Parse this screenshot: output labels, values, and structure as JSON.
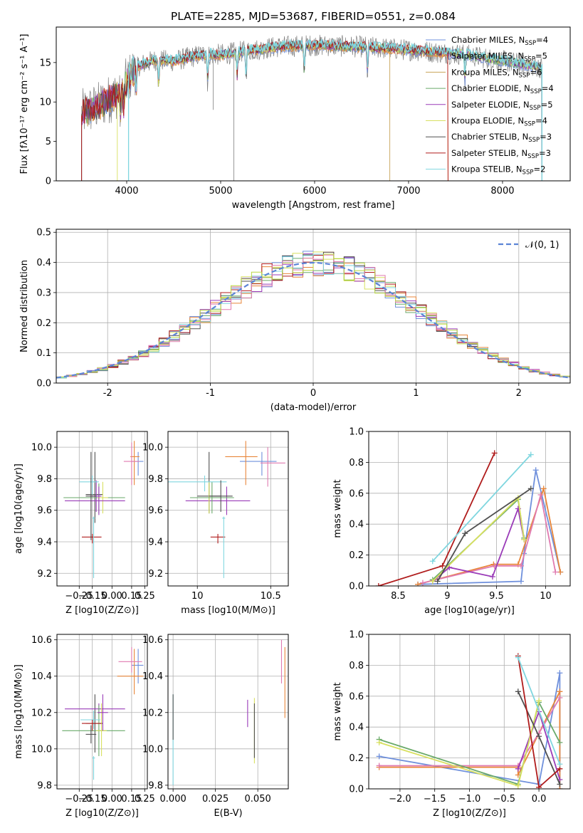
{
  "title": "PLATE=2285, MJD=53687, FIBERID=0551, z=0.084",
  "colors": {
    "Chabrier MILES": "#6f90dc",
    "Salpeter MILES": "#e8863a",
    "Kroupa MILES": "#c8a45a",
    "Chabrier ELODIE": "#6aaa6a",
    "Salpeter ELODIE": "#9a3bb8",
    "Kroupa ELODIE": "#d8e060",
    "Chabrier STELIB": "#505050",
    "Salpeter STELIB": "#b01c1c",
    "Kroupa STELIB": "#7fd6df",
    "pink": "#e07ab0",
    "lime": "#b8d840",
    "data": "#808080"
  },
  "chart_data": [
    {
      "id": "spectrum",
      "type": "line",
      "title": "PLATE=2285, MJD=53687, FIBERID=0551, z=0.084",
      "xlabel": "wavelength [Angstrom, rest frame]",
      "ylabel": "Flux [fλ10⁻¹⁷ erg cm⁻² s⁻¹ A⁻¹]",
      "xlim": [
        3250,
        8720
      ],
      "ylim": [
        0,
        19.5
      ],
      "xticks": [
        4000,
        5000,
        6000,
        7000,
        8000
      ],
      "yticks": [
        0,
        5,
        10,
        15
      ],
      "legend_position": "right",
      "series": [
        {
          "name": "Chabrier MILES, N_SSP=4",
          "color": "#6f90dc"
        },
        {
          "name": "Salpeter MILES, N_SSP=5",
          "color": "#e8863a"
        },
        {
          "name": "Kroupa MILES, N_SSP=6",
          "color": "#c8a45a"
        },
        {
          "name": "Chabrier ELODIE, N_SSP=4",
          "color": "#6aaa6a"
        },
        {
          "name": "Salpeter ELODIE, N_SSP=5",
          "color": "#9a3bb8"
        },
        {
          "name": "Kroupa ELODIE, N_SSP=4",
          "color": "#d8e060"
        },
        {
          "name": "Chabrier STELIB, N_SSP=3",
          "color": "#505050"
        },
        {
          "name": "Salpeter STELIB, N_SSP=3",
          "color": "#b01c1c"
        },
        {
          "name": "Kroupa STELIB, N_SSP=2",
          "color": "#7fd6df"
        }
      ],
      "continuum": {
        "x": [
          3520,
          3700,
          3900,
          4000,
          4100,
          4300,
          4500,
          4800,
          5000,
          5300,
          5600,
          6000,
          6500,
          7000,
          7300,
          7600,
          8000,
          8400
        ],
        "y": [
          8.5,
          9.5,
          11,
          12.5,
          14.5,
          15.3,
          15.2,
          16,
          16,
          16.5,
          17,
          17.2,
          17,
          16.6,
          16.3,
          16,
          15.2,
          14.4
        ]
      }
    },
    {
      "id": "residuals",
      "type": "step",
      "xlabel": "(data-model)/error",
      "ylabel": "Normed distribution",
      "xlim": [
        -2.5,
        2.5
      ],
      "ylim": [
        0,
        0.51
      ],
      "xticks": [
        -2,
        -1,
        0,
        1,
        2
      ],
      "yticks": [
        0.0,
        0.1,
        0.2,
        0.3,
        0.4,
        0.5
      ],
      "legend": "𝒩(0, 1)",
      "legend_position": "top-right"
    },
    {
      "id": "Z-age",
      "type": "errorbar",
      "xlabel": "Z [log10(Z/Z⊙)]",
      "ylabel": "age  [log10(age/yr)]",
      "xlim": [
        -0.42,
        0.27
      ],
      "ylim": [
        9.12,
        10.1
      ],
      "xticks": [
        -0.25,
        -0.15,
        0.0,
        0.15,
        0.25
      ],
      "xticklabels": [
        "−0.25",
        "−0.15",
        "0.00",
        "0.15",
        "0.25"
      ],
      "yticks": [
        9.2,
        9.4,
        9.6,
        9.8,
        10.0
      ]
    },
    {
      "id": "mass-age",
      "type": "errorbar",
      "xlabel": "mass [log10(M/M⊙)]",
      "xlim": [
        9.8,
        10.62
      ],
      "ylim": [
        9.12,
        10.1
      ],
      "xticks": [
        10.0,
        10.5
      ],
      "yticks": [
        9.2,
        9.4,
        9.6,
        9.8,
        10.0
      ]
    },
    {
      "id": "age-weight",
      "type": "line",
      "xlabel": "age  [log10(age/yr)]",
      "ylabel": "mass weight",
      "xlim": [
        8.2,
        10.25
      ],
      "ylim": [
        0,
        1
      ],
      "xticks": [
        8.5,
        9.0,
        9.5,
        10.0
      ],
      "yticks": [
        0.0,
        0.2,
        0.4,
        0.6,
        0.8,
        1.0
      ]
    },
    {
      "id": "Z-mass",
      "type": "errorbar",
      "xlabel": "Z [log10(Z/Z⊙)]",
      "ylabel": "mass [log10(M/M⊙)]",
      "xlim": [
        -0.42,
        0.27
      ],
      "ylim": [
        9.78,
        10.63
      ],
      "xticks": [
        -0.25,
        -0.15,
        0.0,
        0.15,
        0.25
      ],
      "xticklabels": [
        "−0.25",
        "−0.15",
        "0.00",
        "0.15",
        "0.25"
      ],
      "yticks": [
        9.8,
        10.0,
        10.2,
        10.4,
        10.6
      ]
    },
    {
      "id": "ebv-mass",
      "type": "errorbar",
      "xlabel": "E(B-V)",
      "xlim": [
        -0.003,
        0.068
      ],
      "ylim": [
        9.78,
        10.63
      ],
      "xticks": [
        0.0,
        0.025,
        0.05
      ],
      "xticklabels": [
        "0.000",
        "0.025",
        "0.050"
      ],
      "yticks": [
        9.8,
        10.0,
        10.2,
        10.4,
        10.6
      ]
    },
    {
      "id": "Zmet-weight",
      "type": "line",
      "xlabel": "Z [log10(Z/Z⊙)]",
      "ylabel": "mass weight",
      "xlim": [
        -2.45,
        0.45
      ],
      "ylim": [
        0,
        1
      ],
      "xticks": [
        -2.0,
        -1.5,
        -1.0,
        -0.5,
        0.0
      ],
      "xticklabels": [
        "−2.0",
        "−1.5",
        "−1.0",
        "−0.5",
        "0.0"
      ],
      "yticks": [
        0.0,
        0.2,
        0.4,
        0.6,
        0.8,
        1.0
      ]
    }
  ]
}
